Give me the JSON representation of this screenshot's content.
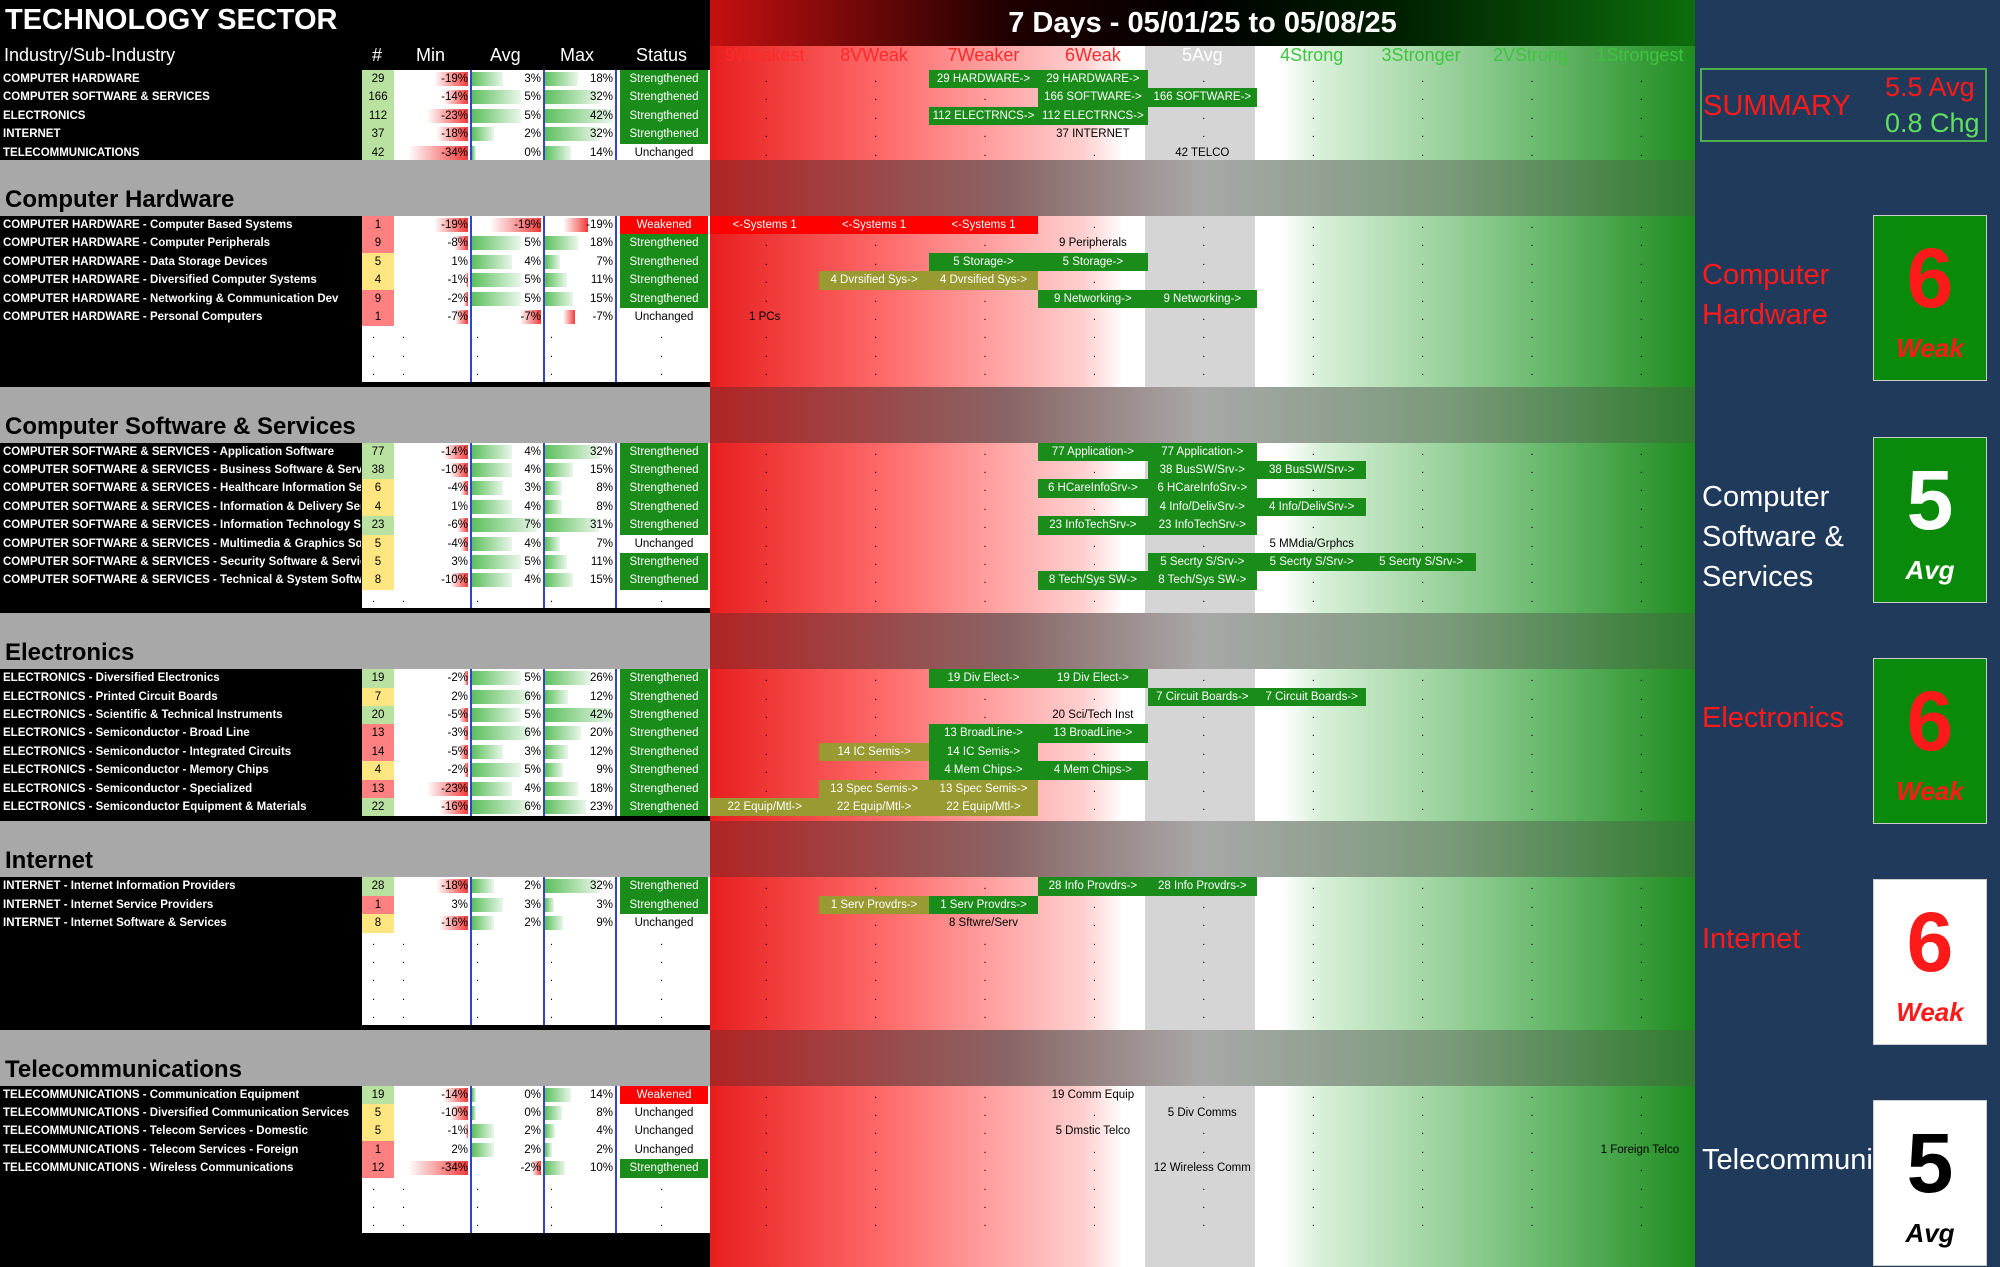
{
  "title": "TECHNOLOGY SECTOR",
  "date_range": "7 Days - 05/01/25 to 05/08/25",
  "columns": {
    "industry": "Industry/Sub-Industry",
    "count": "#",
    "min": "Min",
    "avg": "Avg",
    "max": "Max",
    "status": "Status"
  },
  "scale": [
    "9Weakest",
    "8VWeak",
    "7Weaker",
    "6Weak",
    "5Avg",
    "4Strong",
    "3Stronger",
    "2VStrong",
    "1Strongest"
  ],
  "colors": {
    "weakened": "#ff0000",
    "strengthened": "#1a8c1a",
    "tag_green": "#1a8c1a",
    "tag_olive": "#9a9a33",
    "tag_red": "#ff0000"
  },
  "summary": {
    "label": "SUMMARY",
    "avg": "5.5 Avg",
    "chg": "0.8 Chg"
  },
  "overview": [
    {
      "name": "COMPUTER HARDWARE",
      "count": "29",
      "min": "-19%",
      "avg": "3%",
      "max": "18%",
      "status": "Strengthened",
      "tags": [
        {
          "col": 2,
          "text": "29 HARDWARE->",
          "style": "green"
        },
        {
          "col": 3,
          "text": "29 HARDWARE->",
          "style": "green"
        }
      ]
    },
    {
      "name": "COMPUTER SOFTWARE & SERVICES",
      "count": "166",
      "min": "-14%",
      "avg": "5%",
      "max": "32%",
      "status": "Strengthened",
      "tags": [
        {
          "col": 3,
          "text": "166 SOFTWARE->",
          "style": "green"
        },
        {
          "col": 4,
          "text": "166 SOFTWARE->",
          "style": "green"
        }
      ]
    },
    {
      "name": "ELECTRONICS",
      "count": "112",
      "min": "-23%",
      "avg": "5%",
      "max": "42%",
      "status": "Strengthened",
      "tags": [
        {
          "col": 2,
          "text": "112 ELECTRNCS->",
          "style": "green"
        },
        {
          "col": 3,
          "text": "112 ELECTRNCS->",
          "style": "green"
        }
      ]
    },
    {
      "name": "INTERNET",
      "count": "37",
      "min": "-18%",
      "avg": "2%",
      "max": "32%",
      "status": "Strengthened",
      "tags": [
        {
          "col": 3,
          "text": "37 INTERNET",
          "style": "plain"
        }
      ]
    },
    {
      "name": "TELECOMMUNICATIONS",
      "count": "42",
      "min": "-34%",
      "avg": "0%",
      "max": "14%",
      "status": "Unchanged",
      "tags": [
        {
          "col": 4,
          "text": "42 TELCO",
          "style": "plain"
        }
      ]
    }
  ],
  "sections": [
    {
      "title": "Computer Hardware",
      "panel_name": "Computer Hardware",
      "score": "6",
      "word": "Weak",
      "rows": [
        {
          "name": "COMPUTER HARDWARE - Computer Based Systems",
          "count": "1",
          "min": "-19%",
          "avg": "-19%",
          "max": "-19%",
          "status": "Weakened",
          "tags": [
            {
              "col": 0,
              "text": "<-Systems 1",
              "style": "red"
            },
            {
              "col": 1,
              "text": "<-Systems 1",
              "style": "red"
            },
            {
              "col": 2,
              "text": "<-Systems 1",
              "style": "red"
            }
          ]
        },
        {
          "name": "COMPUTER HARDWARE - Computer Peripherals",
          "count": "9",
          "min": "-8%",
          "avg": "5%",
          "max": "18%",
          "status": "Strengthened",
          "tags": [
            {
              "col": 3,
              "text": "9 Peripherals",
              "style": "plain"
            }
          ]
        },
        {
          "name": "COMPUTER HARDWARE - Data Storage Devices",
          "count": "5",
          "min": "1%",
          "avg": "4%",
          "max": "7%",
          "status": "Strengthened",
          "tags": [
            {
              "col": 2,
              "text": "5 Storage->",
              "style": "green"
            },
            {
              "col": 3,
              "text": "5 Storage->",
              "style": "green"
            }
          ]
        },
        {
          "name": "COMPUTER HARDWARE - Diversified Computer Systems",
          "count": "4",
          "min": "-1%",
          "avg": "5%",
          "max": "11%",
          "status": "Strengthened",
          "tags": [
            {
              "col": 1,
              "text": "4 Dvrsified Sys->",
              "style": "olive"
            },
            {
              "col": 2,
              "text": "4 Dvrsified Sys->",
              "style": "olive"
            }
          ]
        },
        {
          "name": "COMPUTER HARDWARE - Networking & Communication Dev",
          "count": "9",
          "min": "-2%",
          "avg": "5%",
          "max": "15%",
          "status": "Strengthened",
          "tags": [
            {
              "col": 3,
              "text": "9 Networking->",
              "style": "green"
            },
            {
              "col": 4,
              "text": "9 Networking->",
              "style": "green"
            }
          ]
        },
        {
          "name": "COMPUTER HARDWARE - Personal Computers",
          "count": "1",
          "min": "-7%",
          "avg": "-7%",
          "max": "-7%",
          "status": "Unchanged",
          "tags": [
            {
              "col": 0,
              "text": "1 PCs",
              "style": "plain"
            }
          ]
        }
      ]
    },
    {
      "title": "Computer Software & Services",
      "panel_name": "Computer Software & Services",
      "score": "5",
      "word": "Avg",
      "rows": [
        {
          "name": "COMPUTER SOFTWARE & SERVICES - Application Software",
          "count": "77",
          "min": "-14%",
          "avg": "4%",
          "max": "32%",
          "status": "Strengthened",
          "tags": [
            {
              "col": 3,
              "text": "77 Application->",
              "style": "green"
            },
            {
              "col": 4,
              "text": "77 Application->",
              "style": "green"
            }
          ]
        },
        {
          "name": "COMPUTER SOFTWARE & SERVICES - Business Software & Services",
          "count": "38",
          "min": "-10%",
          "avg": "4%",
          "max": "15%",
          "status": "Strengthened",
          "tags": [
            {
              "col": 4,
              "text": "38 BusSW/Srv->",
              "style": "green"
            },
            {
              "col": 5,
              "text": "38 BusSW/Srv->",
              "style": "green"
            }
          ]
        },
        {
          "name": "COMPUTER SOFTWARE & SERVICES - Healthcare Information Services",
          "count": "6",
          "min": "-4%",
          "avg": "3%",
          "max": "8%",
          "status": "Strengthened",
          "tags": [
            {
              "col": 3,
              "text": "6 HCareInfoSrv->",
              "style": "green"
            },
            {
              "col": 4,
              "text": "6 HCareInfoSrv->",
              "style": "green"
            }
          ]
        },
        {
          "name": "COMPUTER SOFTWARE & SERVICES - Information & Delivery Services",
          "count": "4",
          "min": "1%",
          "avg": "4%",
          "max": "8%",
          "status": "Strengthened",
          "tags": [
            {
              "col": 4,
              "text": "4 Info/DelivSrv->",
              "style": "green"
            },
            {
              "col": 5,
              "text": "4 Info/DelivSrv->",
              "style": "green"
            }
          ]
        },
        {
          "name": "COMPUTER SOFTWARE & SERVICES - Information Technology Services",
          "count": "23",
          "min": "-6%",
          "avg": "7%",
          "max": "31%",
          "status": "Strengthened",
          "tags": [
            {
              "col": 3,
              "text": "23 InfoTechSrv->",
              "style": "green"
            },
            {
              "col": 4,
              "text": "23 InfoTechSrv->",
              "style": "green"
            }
          ]
        },
        {
          "name": "COMPUTER SOFTWARE & SERVICES - Multimedia & Graphics Software",
          "count": "5",
          "min": "-4%",
          "avg": "4%",
          "max": "7%",
          "status": "Unchanged",
          "tags": [
            {
              "col": 5,
              "text": "5 MMdia/Grphcs",
              "style": "plain"
            }
          ]
        },
        {
          "name": "COMPUTER SOFTWARE & SERVICES - Security Software & Services",
          "count": "5",
          "min": "3%",
          "avg": "5%",
          "max": "11%",
          "status": "Strengthened",
          "tags": [
            {
              "col": 4,
              "text": "5 Secrty S/Srv->",
              "style": "green"
            },
            {
              "col": 5,
              "text": "5 Secrty S/Srv->",
              "style": "green"
            },
            {
              "col": 6,
              "text": "5 Secrty S/Srv->",
              "style": "green"
            }
          ]
        },
        {
          "name": "COMPUTER SOFTWARE & SERVICES - Technical & System Software",
          "count": "8",
          "min": "-10%",
          "avg": "4%",
          "max": "15%",
          "status": "Strengthened",
          "tags": [
            {
              "col": 3,
              "text": "8 Tech/Sys SW->",
              "style": "green"
            },
            {
              "col": 4,
              "text": "8 Tech/Sys SW->",
              "style": "green"
            }
          ]
        }
      ]
    },
    {
      "title": "Electronics",
      "panel_name": "Electronics",
      "score": "6",
      "word": "Weak",
      "rows": [
        {
          "name": "ELECTRONICS - Diversified Electronics",
          "count": "19",
          "min": "-2%",
          "avg": "5%",
          "max": "26%",
          "status": "Strengthened",
          "tags": [
            {
              "col": 2,
              "text": "19 Div Elect->",
              "style": "green"
            },
            {
              "col": 3,
              "text": "19 Div Elect->",
              "style": "green"
            }
          ]
        },
        {
          "name": "ELECTRONICS - Printed Circuit Boards",
          "count": "7",
          "min": "2%",
          "avg": "6%",
          "max": "12%",
          "status": "Strengthened",
          "tags": [
            {
              "col": 4,
              "text": "7 Circuit Boards->",
              "style": "green"
            },
            {
              "col": 5,
              "text": "7 Circuit Boards->",
              "style": "green"
            }
          ]
        },
        {
          "name": "ELECTRONICS - Scientific & Technical Instruments",
          "count": "20",
          "min": "-5%",
          "avg": "5%",
          "max": "42%",
          "status": "Strengthened",
          "tags": [
            {
              "col": 3,
              "text": "20 Sci/Tech Inst",
              "style": "plain"
            }
          ]
        },
        {
          "name": "ELECTRONICS - Semiconductor - Broad Line",
          "count": "13",
          "min": "-3%",
          "avg": "6%",
          "max": "20%",
          "status": "Strengthened",
          "tags": [
            {
              "col": 2,
              "text": "13 BroadLine->",
              "style": "green"
            },
            {
              "col": 3,
              "text": "13 BroadLine->",
              "style": "green"
            }
          ]
        },
        {
          "name": "ELECTRONICS - Semiconductor - Integrated Circuits",
          "count": "14",
          "min": "-5%",
          "avg": "3%",
          "max": "12%",
          "status": "Strengthened",
          "tags": [
            {
              "col": 1,
              "text": "14 IC Semis->",
              "style": "olive"
            },
            {
              "col": 2,
              "text": "14 IC Semis->",
              "style": "green"
            }
          ]
        },
        {
          "name": "ELECTRONICS - Semiconductor - Memory Chips",
          "count": "4",
          "min": "-2%",
          "avg": "5%",
          "max": "9%",
          "status": "Strengthened",
          "tags": [
            {
              "col": 2,
              "text": "4 Mem Chips->",
              "style": "green"
            },
            {
              "col": 3,
              "text": "4 Mem Chips->",
              "style": "green"
            }
          ]
        },
        {
          "name": "ELECTRONICS - Semiconductor - Specialized",
          "count": "13",
          "min": "-23%",
          "avg": "4%",
          "max": "18%",
          "status": "Strengthened",
          "tags": [
            {
              "col": 1,
              "text": "13 Spec Semis->",
              "style": "olive"
            },
            {
              "col": 2,
              "text": "13 Spec Semis->",
              "style": "olive"
            }
          ]
        },
        {
          "name": "ELECTRONICS - Semiconductor Equipment & Materials",
          "count": "22",
          "min": "-16%",
          "avg": "6%",
          "max": "23%",
          "status": "Strengthened",
          "tags": [
            {
              "col": 0,
              "text": "22 Equip/Mtl->",
              "style": "olive"
            },
            {
              "col": 1,
              "text": "22 Equip/Mtl->",
              "style": "olive"
            },
            {
              "col": 2,
              "text": "22 Equip/Mtl->",
              "style": "olive"
            }
          ]
        }
      ]
    },
    {
      "title": "Internet",
      "panel_name": "Internet",
      "score": "6",
      "word": "Weak",
      "rows": [
        {
          "name": "INTERNET - Internet Information Providers",
          "count": "28",
          "min": "-18%",
          "avg": "2%",
          "max": "32%",
          "status": "Strengthened",
          "tags": [
            {
              "col": 3,
              "text": "28 Info Provdrs->",
              "style": "green"
            },
            {
              "col": 4,
              "text": "28 Info Provdrs->",
              "style": "green"
            }
          ]
        },
        {
          "name": "INTERNET - Internet Service Providers",
          "count": "1",
          "min": "3%",
          "avg": "3%",
          "max": "3%",
          "status": "Strengthened",
          "tags": [
            {
              "col": 1,
              "text": "1 Serv Provdrs->",
              "style": "olive"
            },
            {
              "col": 2,
              "text": "1 Serv Provdrs->",
              "style": "green"
            }
          ]
        },
        {
          "name": "INTERNET - Internet Software & Services",
          "count": "8",
          "min": "-16%",
          "avg": "2%",
          "max": "9%",
          "status": "Unchanged",
          "tags": [
            {
              "col": 2,
              "text": "8 Sftwre/Serv",
              "style": "plain"
            }
          ]
        }
      ]
    },
    {
      "title": "Telecommunications",
      "panel_name": "Telecommunications",
      "score": "5",
      "word": "Avg",
      "rows": [
        {
          "name": "TELECOMMUNICATIONS - Communication Equipment",
          "count": "19",
          "min": "-14%",
          "avg": "0%",
          "max": "14%",
          "status": "Weakened",
          "tags": [
            {
              "col": 3,
              "text": "19 Comm Equip",
              "style": "plain"
            }
          ]
        },
        {
          "name": "TELECOMMUNICATIONS - Diversified Communication Services",
          "count": "5",
          "min": "-10%",
          "avg": "0%",
          "max": "8%",
          "status": "Unchanged",
          "tags": [
            {
              "col": 4,
              "text": "5 Div Comms",
              "style": "plain"
            }
          ]
        },
        {
          "name": "TELECOMMUNICATIONS - Telecom Services - Domestic",
          "count": "5",
          "min": "-1%",
          "avg": "2%",
          "max": "4%",
          "status": "Unchanged",
          "tags": [
            {
              "col": 3,
              "text": "5 Dmstic Telco",
              "style": "plain"
            }
          ]
        },
        {
          "name": "TELECOMMUNICATIONS - Telecom Services - Foreign",
          "count": "1",
          "min": "2%",
          "avg": "2%",
          "max": "2%",
          "status": "Unchanged",
          "tags": [
            {
              "col": 8,
              "text": "1 Foreign Telco",
              "style": "plain"
            }
          ]
        },
        {
          "name": "TELECOMMUNICATIONS - Wireless Communications",
          "count": "12",
          "min": "-34%",
          "avg": "-2%",
          "max": "10%",
          "status": "Strengthened",
          "tags": [
            {
              "col": 4,
              "text": "12 Wireless Comm",
              "style": "plain"
            }
          ]
        }
      ]
    }
  ]
}
